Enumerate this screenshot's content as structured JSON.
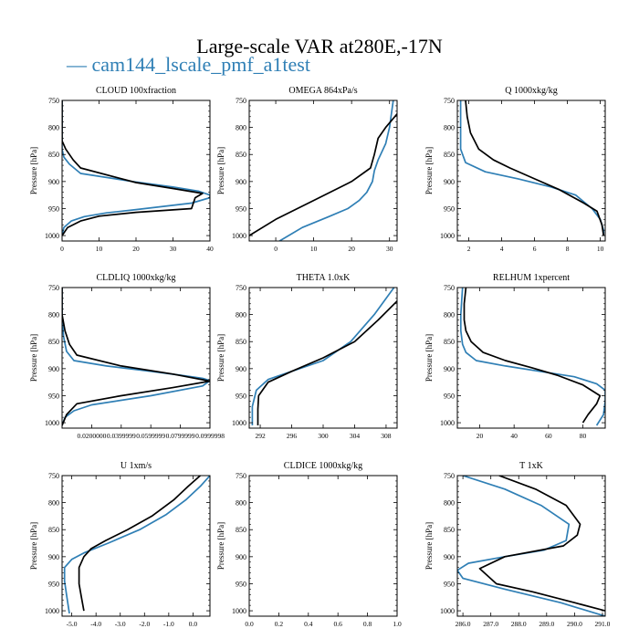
{
  "title": "Large-scale VAR at280E,-17N",
  "legend_label": "cam144_lscale_pmf_a1test",
  "colors": {
    "test": "#2f7fb5",
    "reference": "#000000"
  },
  "chart_data": [
    {
      "type": "line",
      "title": "CLOUD  100xfraction",
      "ylabel": "Pressure [hPa]",
      "xlim": [
        0,
        40
      ],
      "ylim": [
        1010,
        750
      ],
      "xticks": [
        0,
        10,
        20,
        30,
        40
      ],
      "xticklabels": [
        "0",
        "10",
        "20",
        "30",
        "40"
      ],
      "yticks": [
        750,
        800,
        850,
        900,
        950,
        1000
      ],
      "series": [
        {
          "role": "test",
          "x": [
            0,
            0,
            0,
            0,
            0.5,
            2,
            5,
            19,
            30,
            37,
            40,
            40,
            35,
            20,
            12,
            6,
            2.5,
            0.5,
            0
          ],
          "y": [
            750,
            780,
            810,
            840,
            855,
            868,
            885,
            900,
            910,
            918,
            925,
            930,
            940,
            952,
            958,
            965,
            973,
            985,
            1000
          ]
        },
        {
          "role": "reference",
          "x": [
            0,
            0,
            0,
            1,
            3,
            5,
            20,
            30,
            38,
            36,
            35,
            20,
            10,
            5,
            1.5,
            0
          ],
          "y": [
            750,
            800,
            825,
            840,
            860,
            875,
            902,
            913,
            922,
            930,
            950,
            957,
            964,
            973,
            985,
            1000
          ]
        }
      ]
    },
    {
      "type": "line",
      "title": "OMEGA  864xPa/s",
      "ylabel": "Pressure [hPa]",
      "xlim": [
        -7,
        32
      ],
      "ylim": [
        1010,
        750
      ],
      "xticks": [
        0,
        10,
        20,
        30
      ],
      "xticklabels": [
        "0",
        "10",
        "20",
        "30"
      ],
      "yticks": [
        750,
        800,
        850,
        900,
        950,
        1000
      ],
      "series": [
        {
          "role": "test",
          "x": [
            31,
            30,
            29,
            27,
            26,
            25.5,
            24,
            22,
            19,
            14,
            7,
            1
          ],
          "y": [
            750,
            800,
            830,
            860,
            880,
            900,
            920,
            935,
            950,
            965,
            985,
            1010
          ]
        },
        {
          "role": "reference",
          "x": [
            32,
            29,
            27,
            26,
            25,
            20,
            10,
            0,
            -7
          ],
          "y": [
            775,
            800,
            820,
            850,
            875,
            900,
            935,
            970,
            1000
          ]
        }
      ]
    },
    {
      "type": "line",
      "title": "Q  1000xkg/kg",
      "ylabel": "Pressure [hPa]",
      "xlim": [
        1.3,
        10.3
      ],
      "ylim": [
        1010,
        750
      ],
      "xticks": [
        2,
        4,
        6,
        8,
        10
      ],
      "xticklabels": [
        "2",
        "4",
        "6",
        "8",
        "10"
      ],
      "yticks": [
        750,
        800,
        850,
        900,
        950,
        1000
      ],
      "series": [
        {
          "role": "test",
          "x": [
            1.5,
            1.5,
            1.5,
            1.8,
            3,
            5,
            7,
            8.5,
            9.5,
            10,
            10.2,
            10.2
          ],
          "y": [
            750,
            800,
            840,
            865,
            882,
            895,
            910,
            925,
            950,
            970,
            990,
            1000
          ]
        },
        {
          "role": "reference",
          "x": [
            1.8,
            1.9,
            2.1,
            2.6,
            3.5,
            4.5,
            6,
            7.5,
            9,
            9.8,
            10.1,
            10.2
          ],
          "y": [
            750,
            780,
            810,
            840,
            860,
            875,
            895,
            915,
            940,
            955,
            980,
            1000
          ]
        }
      ]
    },
    {
      "type": "line",
      "title": "CLDLIQ  1000xkg/kg",
      "ylabel": "Pressure [hPa]",
      "xlim": [
        0,
        0.1
      ],
      "ylim": [
        1010,
        750
      ],
      "xticks": [
        0.02,
        0.04,
        0.06,
        0.08,
        0.1
      ],
      "xticklabels": [
        "0.0200000",
        "0.0399999",
        "0.0599999",
        "0.0799999",
        "0.0999998"
      ],
      "yticks": [
        750,
        800,
        850,
        900,
        950,
        1000
      ],
      "series": [
        {
          "role": "test",
          "x": [
            0,
            0,
            0.001,
            0.003,
            0.008,
            0.03,
            0.06,
            0.08,
            0.095,
            0.1,
            0.095,
            0.06,
            0.02,
            0.008,
            0.002,
            0
          ],
          "y": [
            750,
            800,
            840,
            868,
            885,
            895,
            905,
            912,
            918,
            922,
            932,
            950,
            967,
            978,
            990,
            1005
          ]
        },
        {
          "role": "reference",
          "x": [
            0,
            0,
            0.002,
            0.005,
            0.01,
            0.04,
            0.075,
            0.1,
            0.075,
            0.04,
            0.01,
            0.003,
            0
          ],
          "y": [
            750,
            800,
            830,
            855,
            875,
            895,
            910,
            923,
            935,
            950,
            965,
            985,
            1005
          ]
        }
      ]
    },
    {
      "type": "line",
      "title": "THETA  1.0xK",
      "ylabel": "Pressure [hPa]",
      "xlim": [
        290.6,
        309.4
      ],
      "ylim": [
        1010,
        750
      ],
      "xticks": [
        292,
        296,
        300,
        304,
        308
      ],
      "xticklabels": [
        "292",
        "296",
        "300",
        "304",
        "308"
      ],
      "yticks": [
        750,
        800,
        850,
        900,
        950,
        1000
      ],
      "series": [
        {
          "role": "test",
          "x": [
            309,
            306.5,
            303.5,
            300,
            296,
            293,
            291.5,
            291,
            291
          ],
          "y": [
            750,
            800,
            850,
            885,
            905,
            920,
            940,
            970,
            1005
          ]
        },
        {
          "role": "reference",
          "x": [
            309.4,
            307,
            304,
            300,
            296,
            293,
            291.8,
            291.7,
            291.7
          ],
          "y": [
            775,
            810,
            850,
            880,
            905,
            925,
            950,
            975,
            1005
          ]
        }
      ]
    },
    {
      "type": "line",
      "title": "RELHUM  1xpercent",
      "ylabel": "Pressure [hPa]",
      "xlim": [
        7,
        93
      ],
      "ylim": [
        1010,
        750
      ],
      "xticks": [
        20,
        40,
        60,
        80
      ],
      "xticklabels": [
        "20",
        "40",
        "60",
        "80"
      ],
      "yticks": [
        750,
        800,
        850,
        900,
        950,
        1000
      ],
      "series": [
        {
          "role": "test",
          "x": [
            10,
            9,
            9,
            10,
            12,
            18,
            35,
            55,
            75,
            88,
            93,
            93,
            92,
            88
          ],
          "y": [
            750,
            800,
            830,
            855,
            870,
            885,
            895,
            905,
            915,
            928,
            940,
            960,
            985,
            1005
          ]
        },
        {
          "role": "reference",
          "x": [
            12,
            11,
            11,
            12,
            15,
            22,
            35,
            50,
            65,
            80,
            90,
            88,
            83,
            80
          ],
          "y": [
            750,
            780,
            810,
            830,
            850,
            870,
            885,
            898,
            912,
            930,
            950,
            965,
            985,
            1000
          ]
        }
      ]
    },
    {
      "type": "line",
      "title": "U  1xm/s",
      "ylabel": "Pressure [hPa]",
      "xlim": [
        -5.4,
        0.7
      ],
      "ylim": [
        1010,
        750
      ],
      "xticks": [
        -5,
        -4,
        -3,
        -2,
        -1,
        0
      ],
      "xticklabels": [
        "-5.0",
        "-4.0",
        "-3.0",
        "-2.0",
        "-1.0",
        "0.0"
      ],
      "yticks": [
        750,
        800,
        850,
        900,
        950,
        1000
      ],
      "series": [
        {
          "role": "test",
          "x": [
            0.7,
            0.3,
            -0.3,
            -1.1,
            -2.2,
            -3.5,
            -4.5,
            -5.0,
            -5.3,
            -5.3,
            -5.2,
            -5.1
          ],
          "y": [
            750,
            770,
            795,
            822,
            850,
            875,
            893,
            905,
            920,
            945,
            975,
            1005
          ]
        },
        {
          "role": "reference",
          "x": [
            0.3,
            -0.2,
            -0.8,
            -1.7,
            -2.7,
            -3.6,
            -4.2,
            -4.5,
            -4.7,
            -4.7,
            -4.6,
            -4.5
          ],
          "y": [
            750,
            770,
            795,
            825,
            850,
            870,
            885,
            900,
            920,
            950,
            975,
            1000
          ]
        }
      ]
    },
    {
      "type": "line",
      "title": "CLDICE  1000xkg/kg",
      "ylabel": "Pressure [hPa]",
      "xlim": [
        0,
        1
      ],
      "ylim": [
        1010,
        750
      ],
      "xticks": [
        0,
        0.2,
        0.4,
        0.6,
        0.8,
        1.0
      ],
      "xticklabels": [
        "0.0",
        "0.2",
        "0.4",
        "0.6",
        "0.8",
        "1.0"
      ],
      "yticks": [
        750,
        800,
        850,
        900,
        950,
        1000
      ],
      "series": []
    },
    {
      "type": "line",
      "title": "T  1xK",
      "ylabel": "Pressure [hPa]",
      "xlim": [
        285.8,
        291.1
      ],
      "ylim": [
        1010,
        750
      ],
      "xticks": [
        286,
        287,
        288,
        289,
        290,
        291
      ],
      "xticklabels": [
        "286.0",
        "287.0",
        "288.0",
        "289.0",
        "290.0",
        "291.0"
      ],
      "yticks": [
        750,
        800,
        850,
        900,
        950,
        1000
      ],
      "series": [
        {
          "role": "test",
          "x": [
            286.0,
            287.5,
            288.8,
            289.8,
            289.7,
            288.9,
            287.5,
            286.2,
            285.8,
            286.0,
            287.5,
            289.5,
            291.1
          ],
          "y": [
            750,
            775,
            805,
            840,
            870,
            888,
            900,
            912,
            925,
            940,
            960,
            985,
            1010
          ]
        },
        {
          "role": "reference",
          "x": [
            287.3,
            288.6,
            289.7,
            290.2,
            290.1,
            289.6,
            287.5,
            286.6,
            287.2,
            288.5,
            290.0,
            291.1
          ],
          "y": [
            750,
            775,
            805,
            840,
            860,
            880,
            900,
            922,
            950,
            965,
            985,
            1000
          ]
        }
      ]
    }
  ]
}
